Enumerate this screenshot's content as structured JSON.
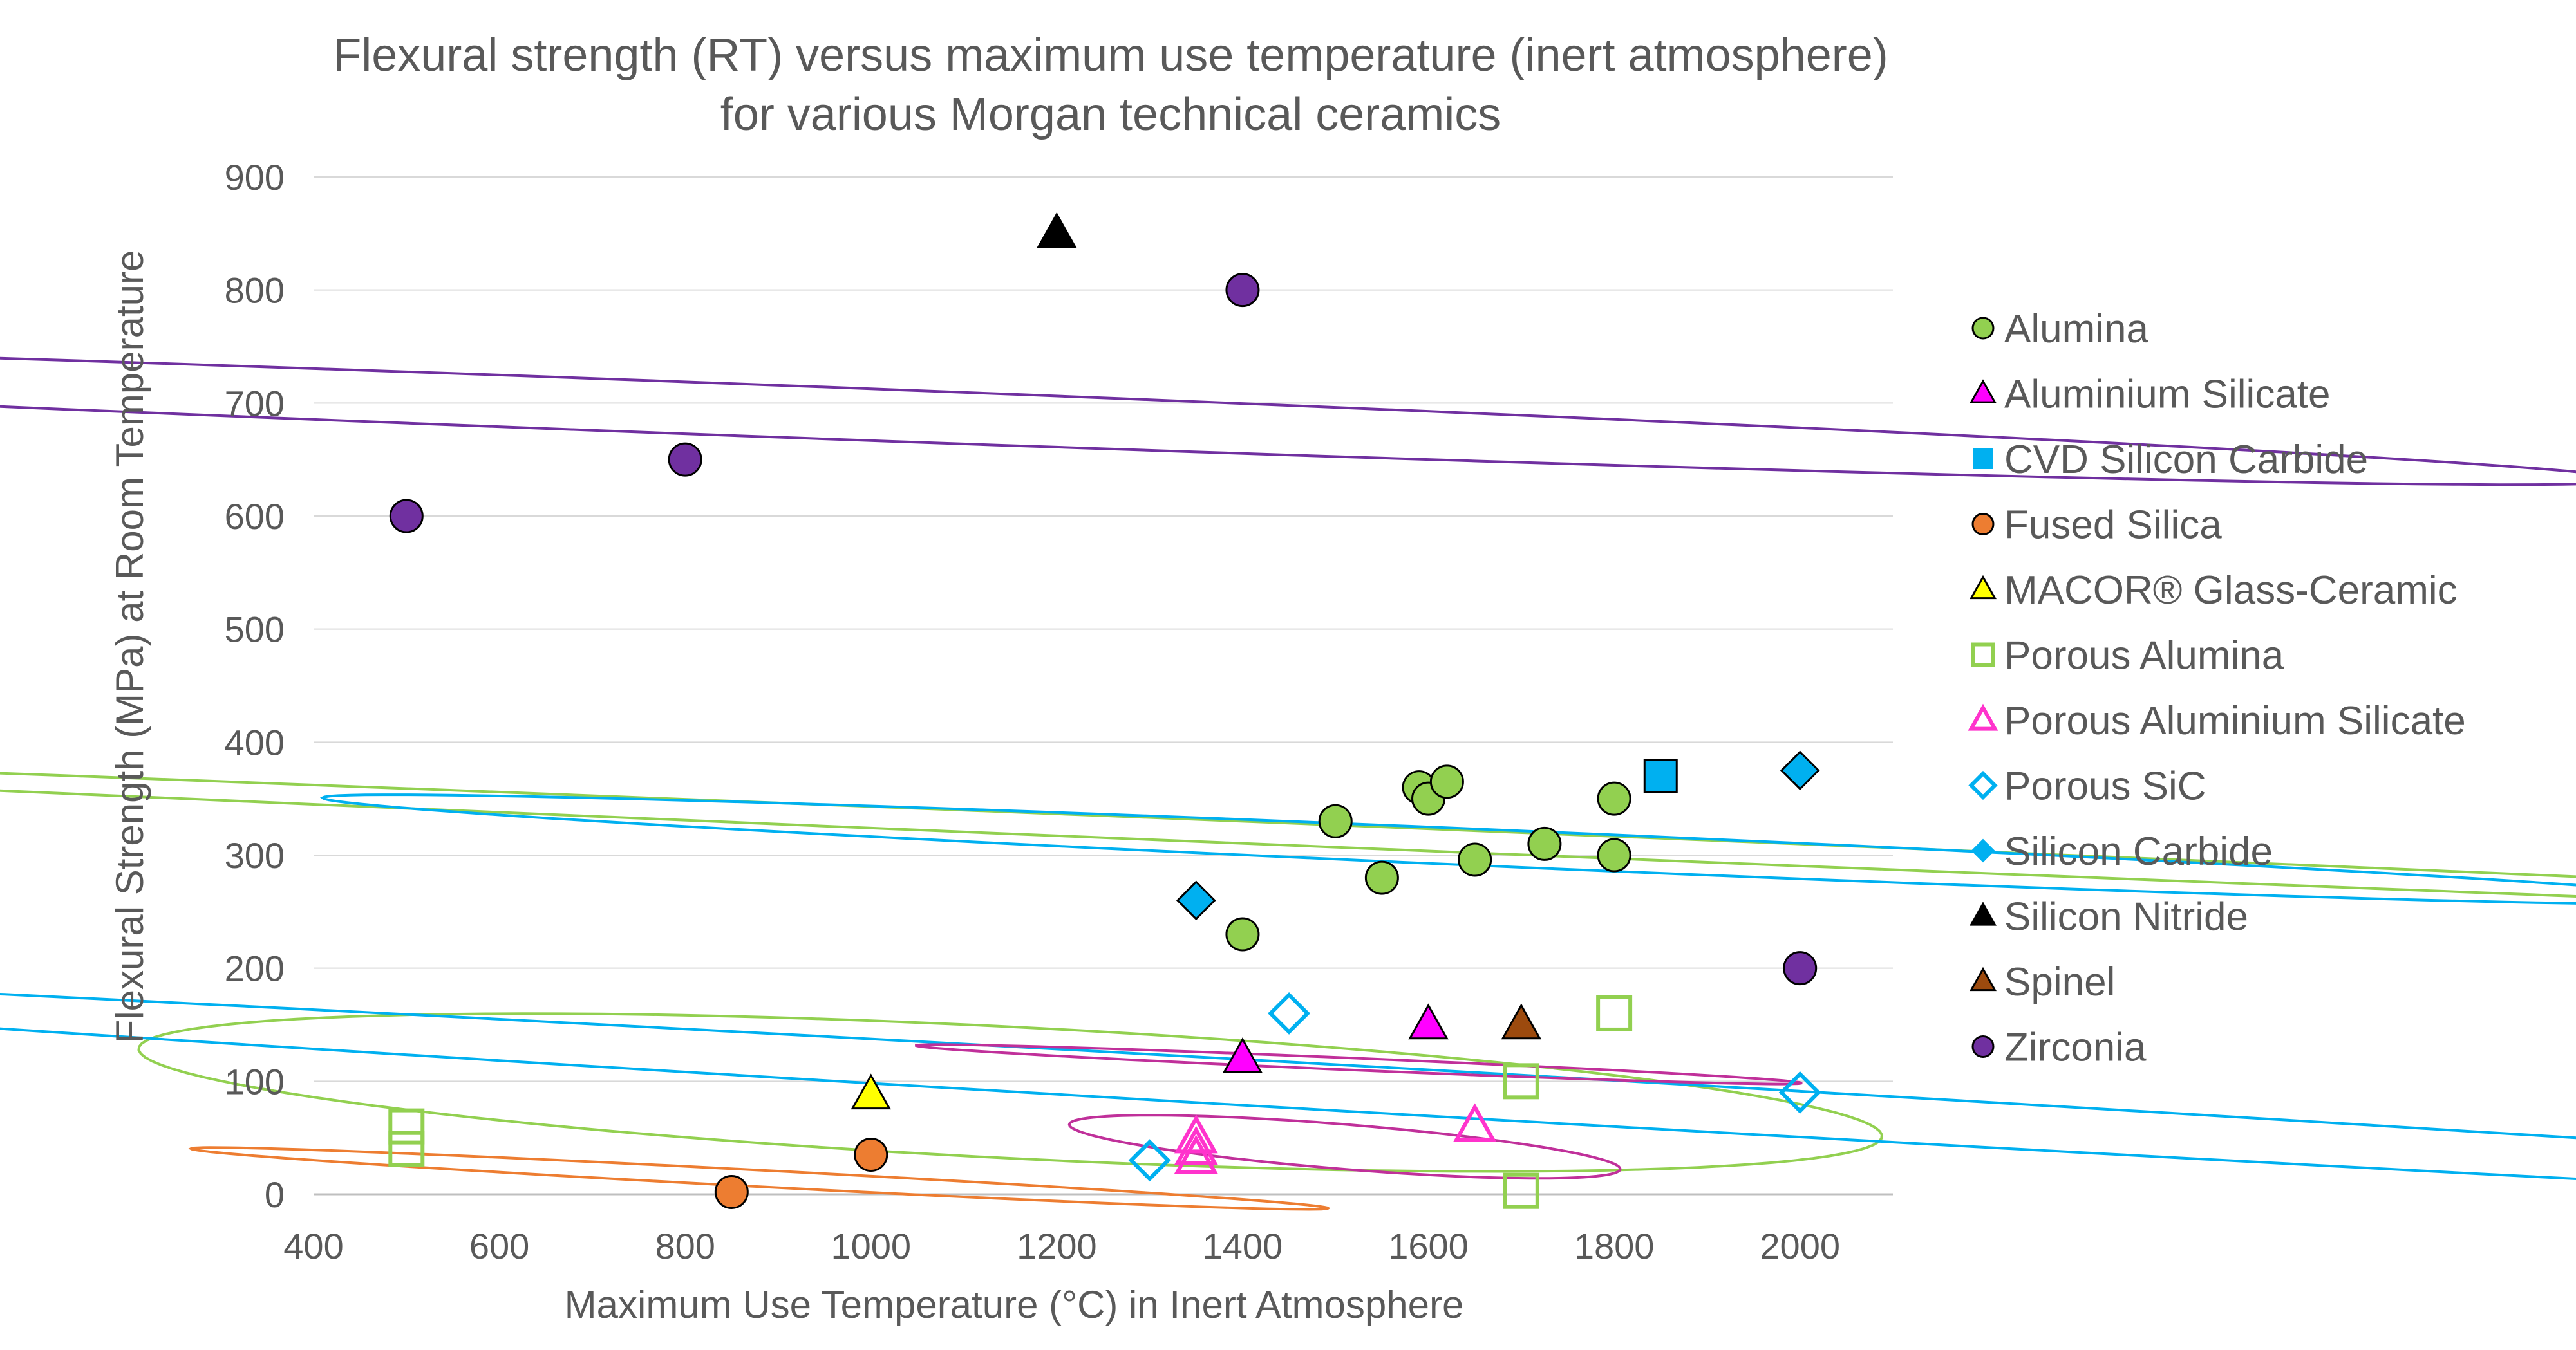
{
  "chart_data": {
    "type": "scatter",
    "title": "Flexural strength (RT) versus maximum use temperature (inert atmosphere)",
    "subtitle": "for various Morgan technical ceramics",
    "xlabel": "Maximum Use Temperature (°C) in Inert Atmosphere",
    "ylabel": "Flexural Strength (MPa) at Room Temperature",
    "xlim": [
      400,
      2100
    ],
    "ylim": [
      0,
      900
    ],
    "x_ticks": [
      "400",
      "600",
      "800",
      "1000",
      "1200",
      "1400",
      "1600",
      "1800",
      "2000"
    ],
    "y_ticks": [
      "0",
      "100",
      "200",
      "300",
      "400",
      "500",
      "600",
      "700",
      "800",
      "900"
    ],
    "grid": "horizontal",
    "legend_position": "right",
    "series": [
      {
        "name": "Alumina",
        "marker": "circle",
        "filled": true,
        "color": "#92D050",
        "points": [
          [
            1400,
            230
          ],
          [
            1500,
            330
          ],
          [
            1550,
            280
          ],
          [
            1590,
            360
          ],
          [
            1600,
            350
          ],
          [
            1620,
            365
          ],
          [
            1650,
            296
          ],
          [
            1725,
            310
          ],
          [
            1800,
            350
          ],
          [
            1800,
            300
          ]
        ]
      },
      {
        "name": "Aluminium Silicate",
        "marker": "triangle",
        "filled": true,
        "color": "#FF00FF",
        "points": [
          [
            1400,
            120
          ],
          [
            1600,
            150
          ]
        ]
      },
      {
        "name": "CVD Silicon Carbide",
        "marker": "square",
        "filled": true,
        "color": "#00B0F0",
        "points": [
          [
            1850,
            370
          ]
        ]
      },
      {
        "name": "Fused Silica",
        "marker": "circle",
        "filled": true,
        "color": "#ED7D31",
        "points": [
          [
            850,
            2
          ],
          [
            1000,
            35
          ]
        ]
      },
      {
        "name": "MACOR® Glass-Ceramic",
        "marker": "triangle",
        "filled": true,
        "color": "#FFFF00",
        "points": [
          [
            1000,
            88
          ]
        ]
      },
      {
        "name": "Porous Alumina",
        "marker": "square",
        "filled": false,
        "color": "#92D050",
        "points": [
          [
            500,
            60
          ],
          [
            500,
            40
          ],
          [
            1700,
            100
          ],
          [
            1700,
            3
          ],
          [
            1800,
            160
          ]
        ]
      },
      {
        "name": "Porous Aluminium Silicate",
        "marker": "triangle",
        "filled": false,
        "color": "#FF33CC",
        "points": [
          [
            1350,
            50
          ],
          [
            1350,
            40
          ],
          [
            1350,
            32
          ],
          [
            1650,
            60
          ]
        ]
      },
      {
        "name": "Porous SiC",
        "marker": "diamond",
        "filled": false,
        "color": "#00B0F0",
        "points": [
          [
            1300,
            30
          ],
          [
            1450,
            160
          ],
          [
            2000,
            90
          ]
        ]
      },
      {
        "name": "Silicon Carbide",
        "marker": "diamond",
        "filled": true,
        "color": "#00B0F0",
        "points": [
          [
            1350,
            260
          ],
          [
            2000,
            375
          ]
        ]
      },
      {
        "name": "Silicon Nitride",
        "marker": "triangle",
        "filled": true,
        "color": "#000000",
        "points": [
          [
            1200,
            850
          ]
        ]
      },
      {
        "name": "Spinel",
        "marker": "triangle",
        "filled": true,
        "color": "#9C4A0E",
        "points": [
          [
            1700,
            150
          ]
        ]
      },
      {
        "name": "Zirconia",
        "marker": "circle",
        "filled": true,
        "color": "#7030A0",
        "points": [
          [
            500,
            600
          ],
          [
            800,
            650
          ],
          [
            1400,
            800
          ],
          [
            2000,
            200
          ]
        ]
      }
    ],
    "groupings": [
      {
        "color": "#7030A0",
        "cx": 825,
        "cy": 695,
        "rx": 680,
        "ry": 70,
        "angle": 16.3
      },
      {
        "color": "#92D050",
        "cx": 1645,
        "cy": 312,
        "rx": 280,
        "ry": 90,
        "angle": 16.5
      },
      {
        "color": "#00B0F0",
        "cx": 1710,
        "cy": 305,
        "rx": 420,
        "ry": 50,
        "angle": 14.3
      },
      {
        "color": "#92D050",
        "cx": 1150,
        "cy": 90,
        "rx": 780,
        "ry": 70,
        "angle": 4.3
      },
      {
        "color": "#00B0F0",
        "cx": 1700,
        "cy": 85,
        "rx": 420,
        "ry": 120,
        "angle": 11.7
      },
      {
        "color": "#C0309A",
        "cx": 1525,
        "cy": 115,
        "rx": 140,
        "ry": 18,
        "angle": 14.7
      },
      {
        "color": "#C0309A",
        "cx": 1510,
        "cy": 42,
        "rx": 210,
        "ry": 28,
        "angle": 4.3
      },
      {
        "color": "#ED7D31",
        "cx": 880,
        "cy": 14,
        "rx": 160,
        "ry": 28,
        "angle": 12.2
      }
    ]
  }
}
